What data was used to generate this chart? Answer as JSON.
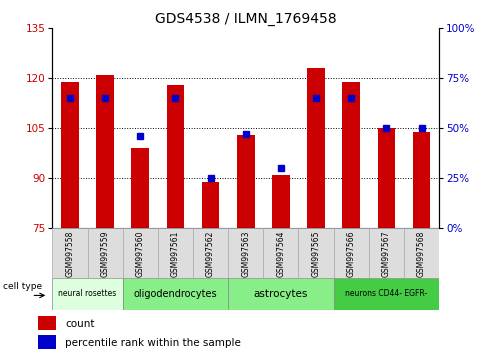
{
  "title": "GDS4538 / ILMN_1769458",
  "samples": [
    "GSM997558",
    "GSM997559",
    "GSM997560",
    "GSM997561",
    "GSM997562",
    "GSM997563",
    "GSM997564",
    "GSM997565",
    "GSM997566",
    "GSM997567",
    "GSM997568"
  ],
  "counts": [
    119,
    121,
    99,
    118,
    89,
    103,
    91,
    123,
    119,
    105,
    104
  ],
  "percentile_ranks": [
    65,
    65,
    46,
    65,
    25,
    47,
    30,
    65,
    65,
    50,
    50
  ],
  "ylim_left": [
    75,
    135
  ],
  "ylim_right": [
    0,
    100
  ],
  "yticks_left": [
    75,
    90,
    105,
    120,
    135
  ],
  "yticks_right": [
    0,
    25,
    50,
    75,
    100
  ],
  "bar_color": "#cc0000",
  "square_color": "#0000cc",
  "cell_types": [
    {
      "label": "neural rosettes",
      "start": 0,
      "end": 2,
      "color": "#ddffdd"
    },
    {
      "label": "oligodendrocytes",
      "start": 2,
      "end": 5,
      "color": "#88ee88"
    },
    {
      "label": "astrocytes",
      "start": 5,
      "end": 8,
      "color": "#88ee88"
    },
    {
      "label": "neurons CD44- EGFR-",
      "start": 8,
      "end": 11,
      "color": "#44cc44"
    }
  ],
  "cell_type_label": "cell type",
  "legend_count": "count",
  "legend_pct": "percentile rank within the sample",
  "tick_label_color_left": "#cc0000",
  "tick_label_color_right": "#0000cc",
  "bar_width": 0.5,
  "base_value": 75,
  "grid_yticks": [
    90,
    105,
    120
  ]
}
